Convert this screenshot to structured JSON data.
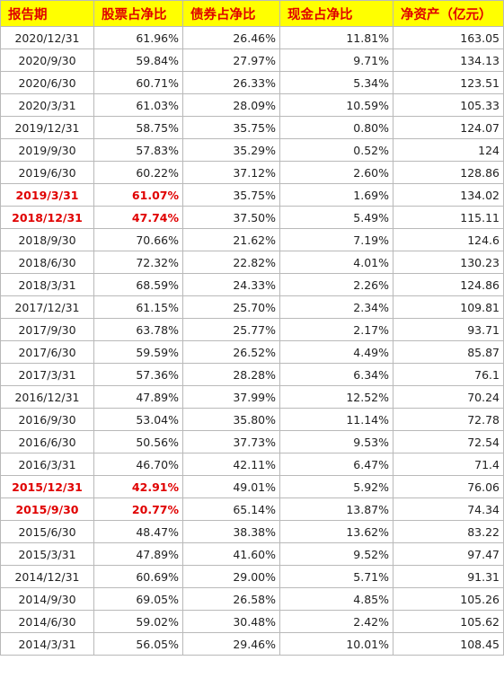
{
  "table": {
    "headers": [
      "报告期",
      "股票占净比",
      "债券占净比",
      "现金占净比",
      "净资产（亿元）"
    ],
    "highlight_color": "#e00000",
    "header_background": "#ffff00",
    "rows": [
      {
        "date": "2020/12/31",
        "stock": "61.96%",
        "bond": "26.46%",
        "cash": "11.81%",
        "assets": "163.05",
        "highlight": false
      },
      {
        "date": "2020/9/30",
        "stock": "59.84%",
        "bond": "27.97%",
        "cash": "9.71%",
        "assets": "134.13",
        "highlight": false
      },
      {
        "date": "2020/6/30",
        "stock": "60.71%",
        "bond": "26.33%",
        "cash": "5.34%",
        "assets": "123.51",
        "highlight": false
      },
      {
        "date": "2020/3/31",
        "stock": "61.03%",
        "bond": "28.09%",
        "cash": "10.59%",
        "assets": "105.33",
        "highlight": false
      },
      {
        "date": "2019/12/31",
        "stock": "58.75%",
        "bond": "35.75%",
        "cash": "0.80%",
        "assets": "124.07",
        "highlight": false
      },
      {
        "date": "2019/9/30",
        "stock": "57.83%",
        "bond": "35.29%",
        "cash": "0.52%",
        "assets": "124",
        "highlight": false
      },
      {
        "date": "2019/6/30",
        "stock": "60.22%",
        "bond": "37.12%",
        "cash": "2.60%",
        "assets": "128.86",
        "highlight": false
      },
      {
        "date": "2019/3/31",
        "stock": "61.07%",
        "bond": "35.75%",
        "cash": "1.69%",
        "assets": "134.02",
        "highlight": true
      },
      {
        "date": "2018/12/31",
        "stock": "47.74%",
        "bond": "37.50%",
        "cash": "5.49%",
        "assets": "115.11",
        "highlight": true
      },
      {
        "date": "2018/9/30",
        "stock": "70.66%",
        "bond": "21.62%",
        "cash": "7.19%",
        "assets": "124.6",
        "highlight": false
      },
      {
        "date": "2018/6/30",
        "stock": "72.32%",
        "bond": "22.82%",
        "cash": "4.01%",
        "assets": "130.23",
        "highlight": false
      },
      {
        "date": "2018/3/31",
        "stock": "68.59%",
        "bond": "24.33%",
        "cash": "2.26%",
        "assets": "124.86",
        "highlight": false
      },
      {
        "date": "2017/12/31",
        "stock": "61.15%",
        "bond": "25.70%",
        "cash": "2.34%",
        "assets": "109.81",
        "highlight": false
      },
      {
        "date": "2017/9/30",
        "stock": "63.78%",
        "bond": "25.77%",
        "cash": "2.17%",
        "assets": "93.71",
        "highlight": false
      },
      {
        "date": "2017/6/30",
        "stock": "59.59%",
        "bond": "26.52%",
        "cash": "4.49%",
        "assets": "85.87",
        "highlight": false
      },
      {
        "date": "2017/3/31",
        "stock": "57.36%",
        "bond": "28.28%",
        "cash": "6.34%",
        "assets": "76.1",
        "highlight": false
      },
      {
        "date": "2016/12/31",
        "stock": "47.89%",
        "bond": "37.99%",
        "cash": "12.52%",
        "assets": "70.24",
        "highlight": false
      },
      {
        "date": "2016/9/30",
        "stock": "53.04%",
        "bond": "35.80%",
        "cash": "11.14%",
        "assets": "72.78",
        "highlight": false
      },
      {
        "date": "2016/6/30",
        "stock": "50.56%",
        "bond": "37.73%",
        "cash": "9.53%",
        "assets": "72.54",
        "highlight": false
      },
      {
        "date": "2016/3/31",
        "stock": "46.70%",
        "bond": "42.11%",
        "cash": "6.47%",
        "assets": "71.4",
        "highlight": false
      },
      {
        "date": "2015/12/31",
        "stock": "42.91%",
        "bond": "49.01%",
        "cash": "5.92%",
        "assets": "76.06",
        "highlight": true
      },
      {
        "date": "2015/9/30",
        "stock": "20.77%",
        "bond": "65.14%",
        "cash": "13.87%",
        "assets": "74.34",
        "highlight": true
      },
      {
        "date": "2015/6/30",
        "stock": "48.47%",
        "bond": "38.38%",
        "cash": "13.62%",
        "assets": "83.22",
        "highlight": false
      },
      {
        "date": "2015/3/31",
        "stock": "47.89%",
        "bond": "41.60%",
        "cash": "9.52%",
        "assets": "97.47",
        "highlight": false
      },
      {
        "date": "2014/12/31",
        "stock": "60.69%",
        "bond": "29.00%",
        "cash": "5.71%",
        "assets": "91.31",
        "highlight": false
      },
      {
        "date": "2014/9/30",
        "stock": "69.05%",
        "bond": "26.58%",
        "cash": "4.85%",
        "assets": "105.26",
        "highlight": false
      },
      {
        "date": "2014/6/30",
        "stock": "59.02%",
        "bond": "30.48%",
        "cash": "2.42%",
        "assets": "105.62",
        "highlight": false
      },
      {
        "date": "2014/3/31",
        "stock": "56.05%",
        "bond": "29.46%",
        "cash": "10.01%",
        "assets": "108.45",
        "highlight": false
      }
    ]
  }
}
